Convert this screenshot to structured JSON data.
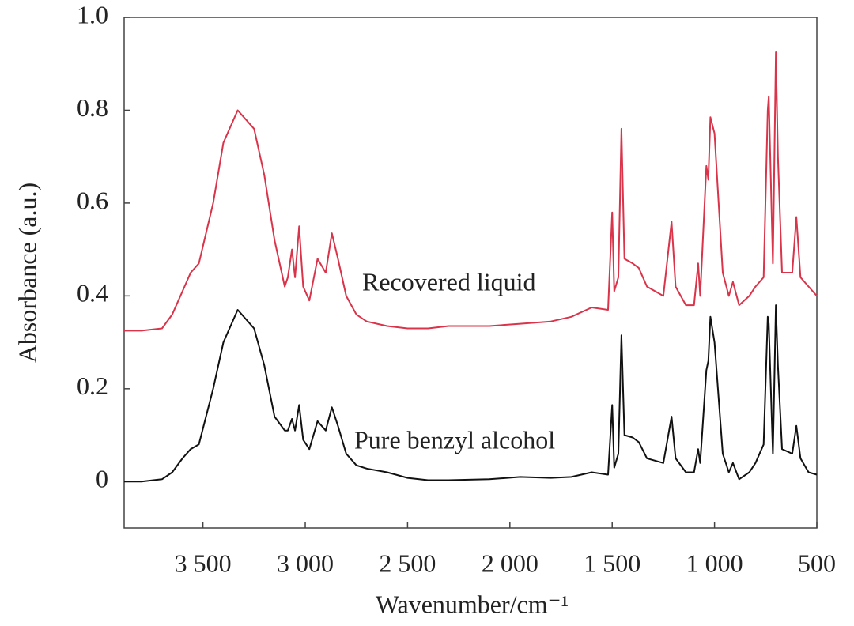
{
  "chart_data": {
    "type": "line",
    "xlabel": "Wavenumber/cm⁻¹",
    "ylabel": "Absorbance (a.u.)",
    "annotations": [
      "Recovered liquid",
      "Pure benzyl alcohol"
    ],
    "x": [
      3885,
      3800,
      3700,
      3650,
      3600,
      3560,
      3520,
      3450,
      3400,
      3330,
      3250,
      3200,
      3150,
      3100,
      3085,
      3065,
      3050,
      3030,
      3010,
      2980,
      2940,
      2900,
      2870,
      2840,
      2800,
      2750,
      2700,
      2600,
      2500,
      2400,
      2300,
      2100,
      1950,
      1800,
      1700,
      1600,
      1520,
      1500,
      1490,
      1470,
      1455,
      1440,
      1400,
      1370,
      1330,
      1250,
      1210,
      1190,
      1140,
      1100,
      1080,
      1070,
      1040,
      1030,
      1020,
      1000,
      960,
      930,
      910,
      880,
      830,
      800,
      760,
      740,
      735,
      715,
      700,
      690,
      670,
      620,
      600,
      580,
      540,
      500
    ],
    "series": [
      {
        "name": "Recovered liquid",
        "color": "#d9344a",
        "values": [
          0.325,
          0.325,
          0.33,
          0.36,
          0.41,
          0.45,
          0.47,
          0.6,
          0.73,
          0.8,
          0.76,
          0.66,
          0.52,
          0.42,
          0.44,
          0.5,
          0.44,
          0.55,
          0.42,
          0.39,
          0.48,
          0.45,
          0.535,
          0.48,
          0.4,
          0.36,
          0.345,
          0.335,
          0.33,
          0.33,
          0.335,
          0.335,
          0.34,
          0.345,
          0.355,
          0.375,
          0.37,
          0.58,
          0.41,
          0.44,
          0.76,
          0.48,
          0.47,
          0.46,
          0.42,
          0.4,
          0.56,
          0.42,
          0.38,
          0.38,
          0.47,
          0.4,
          0.68,
          0.65,
          0.785,
          0.75,
          0.45,
          0.4,
          0.43,
          0.38,
          0.4,
          0.42,
          0.44,
          0.8,
          0.83,
          0.47,
          0.925,
          0.7,
          0.45,
          0.45,
          0.57,
          0.44,
          0.42,
          0.4
        ]
      },
      {
        "name": "Pure benzyl alcohol",
        "color": "#111111",
        "values": [
          0,
          0,
          0.005,
          0.02,
          0.05,
          0.07,
          0.08,
          0.2,
          0.3,
          0.37,
          0.33,
          0.25,
          0.14,
          0.11,
          0.11,
          0.135,
          0.11,
          0.165,
          0.09,
          0.07,
          0.13,
          0.11,
          0.16,
          0.12,
          0.06,
          0.035,
          0.028,
          0.02,
          0.008,
          0.003,
          0.003,
          0.005,
          0.01,
          0.008,
          0.01,
          0.02,
          0.015,
          0.165,
          0.03,
          0.06,
          0.315,
          0.1,
          0.095,
          0.085,
          0.05,
          0.04,
          0.14,
          0.05,
          0.02,
          0.02,
          0.07,
          0.04,
          0.24,
          0.26,
          0.355,
          0.3,
          0.06,
          0.02,
          0.04,
          0.005,
          0.02,
          0.04,
          0.08,
          0.355,
          0.34,
          0.06,
          0.38,
          0.25,
          0.07,
          0.06,
          0.12,
          0.05,
          0.02,
          0.015
        ]
      }
    ],
    "xlim": [
      3885,
      500
    ],
    "xticks": [
      {
        "value": 3500,
        "label": "3 500"
      },
      {
        "value": 3000,
        "label": "3 000"
      },
      {
        "value": 2500,
        "label": "2 500"
      },
      {
        "value": 2000,
        "label": "2 000"
      },
      {
        "value": 1500,
        "label": "1 500"
      },
      {
        "value": 1000,
        "label": "1 000"
      },
      500
    ],
    "ylim": [
      -0.1,
      1.0
    ],
    "yticks": [
      0,
      0.2,
      0.4,
      0.6,
      0.8,
      {
        "value": 1.0,
        "label": "1.0"
      }
    ],
    "grid": false
  }
}
